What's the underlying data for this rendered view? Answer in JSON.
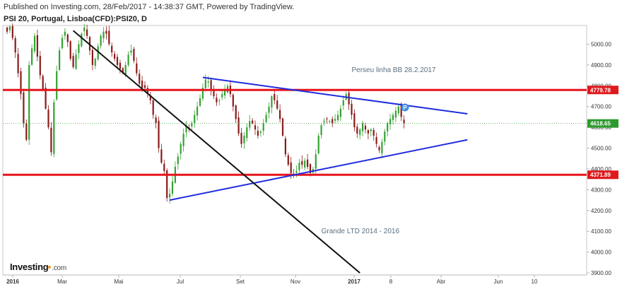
{
  "header": {
    "published": "Published on Investing.com, 28/Feb/2017 - 14:38:37 GMT, Powered by TradingView.",
    "symbol": "PSI 20, Portugal, Lisboa(CFD):PSI20, D"
  },
  "logo": {
    "name": "Investing",
    "suffix": ".com"
  },
  "chart_data": {
    "type": "candlestick",
    "title": "PSI 20, Portugal, Lisboa(CFD):PSI20, D",
    "x_tick_labels": [
      "2016",
      "Mar",
      "Mai",
      "Jul",
      "Set",
      "Nov",
      "2017",
      "8",
      "Abr",
      "Jun",
      "10"
    ],
    "y_tick_labels": [
      "3900.00",
      "4000.00",
      "4100.00",
      "4200.00",
      "4300.00",
      "4400.00",
      "4500.00",
      "4600.00",
      "4700.00",
      "4800.00",
      "4900.00",
      "5000.00"
    ],
    "ylim": [
      3890,
      5090
    ],
    "price_tags": [
      {
        "label": "4779.78",
        "value": 4779.78,
        "color": "#e0191e"
      },
      {
        "label": "4618.65",
        "value": 4618.65,
        "color": "#2c9a2c"
      },
      {
        "label": "4371.89",
        "value": 4371.89,
        "color": "#e0191e"
      }
    ],
    "horizontal_lines": [
      {
        "value": 4779.78,
        "color": "#e8141b"
      },
      {
        "value": 4371.89,
        "color": "#e8141b"
      }
    ],
    "last_price_line": {
      "value": 4618.65,
      "color": "#3aa23a"
    },
    "trend_lines": [
      {
        "name": "Perseu linha BB 28.2.2017",
        "from": {
          "i": 71,
          "v": 4840
        },
        "to": {
          "i": 167,
          "v": 4665
        },
        "color": "#1f2ddf"
      },
      {
        "from": {
          "i": 59,
          "v": 4250
        },
        "to": {
          "i": 167,
          "v": 4540
        },
        "color": "#1f2ddf"
      },
      {
        "name": "Grande LTD 2014 - 2016",
        "from": {
          "i": 24,
          "v": 5065
        },
        "to": {
          "i": 128,
          "v": 3900
        },
        "color": "#111111"
      }
    ],
    "annotations": [
      {
        "text": "Perseu linha BB 28.2.2017",
        "i": 125,
        "v": 4865
      },
      {
        "text": "Grande LTD 2014 - 2016",
        "i": 114,
        "v": 4090
      }
    ],
    "closes": [
      5060,
      5085,
      5030,
      4960,
      4860,
      4760,
      4620,
      4540,
      4900,
      4980,
      5040,
      4940,
      4850,
      4780,
      4690,
      4600,
      4480,
      4720,
      4870,
      4970,
      5030,
      5060,
      5010,
      4930,
      4890,
      4950,
      5000,
      5050,
      5080,
      5040,
      4970,
      4900,
      4930,
      4990,
      5040,
      5060,
      5050,
      5000,
      4960,
      4930,
      4900,
      4880,
      4860,
      4900,
      4950,
      4970,
      4920,
      4860,
      4810,
      4790,
      4790,
      4760,
      4730,
      4660,
      4620,
      4500,
      4430,
      4390,
      4260,
      4280,
      4340,
      4410,
      4460,
      4520,
      4570,
      4610,
      4590,
      4620,
      4660,
      4700,
      4740,
      4790,
      4830,
      4820,
      4780,
      4750,
      4720,
      4730,
      4760,
      4780,
      4800,
      4760,
      4700,
      4640,
      4570,
      4520,
      4560,
      4600,
      4630,
      4620,
      4590,
      4560,
      4580,
      4620,
      4660,
      4700,
      4750,
      4730,
      4690,
      4640,
      4560,
      4470,
      4420,
      4380,
      4370,
      4390,
      4430,
      4420,
      4440,
      4410,
      4380,
      4400,
      4470,
      4560,
      4610,
      4630,
      4640,
      4630,
      4620,
      4640,
      4660,
      4690,
      4730,
      4760,
      4710,
      4660,
      4600,
      4570,
      4590,
      4620,
      4590,
      4570,
      4590,
      4560,
      4520,
      4490,
      4530,
      4580,
      4620,
      4640,
      4660,
      4680,
      4700,
      4650,
      4618.65
    ]
  },
  "colors": {
    "up": "#34a233",
    "down": "#8b1a1a",
    "axis": "#b8b8b8"
  }
}
